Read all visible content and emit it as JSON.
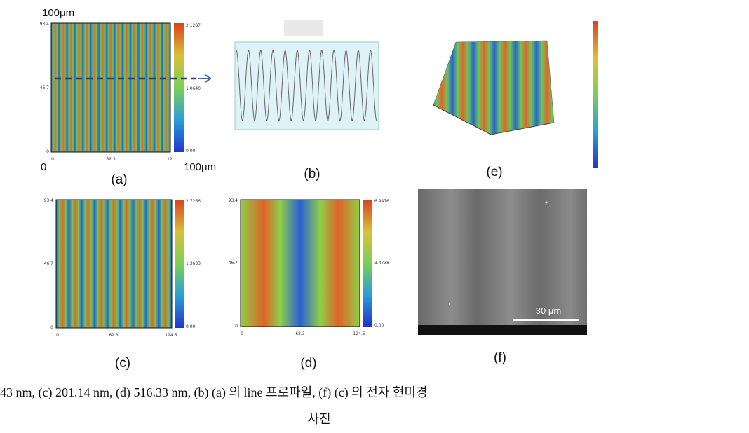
{
  "panels": {
    "a": {
      "label": "(a)",
      "scale_top": "100μm",
      "yticks": [
        "93.4",
        "46.7",
        "0"
      ],
      "xticks": [
        "0",
        "62.3",
        "12"
      ],
      "colorbar": [
        "2.1287",
        "1.0640",
        "0.00"
      ],
      "axis_start": "0",
      "axis_end": "100μm"
    },
    "b": {
      "label": "(b)"
    },
    "c": {
      "label": "(c)",
      "yticks": [
        "93.4",
        "46.7",
        "0"
      ],
      "xticks": [
        "0",
        "62.3",
        "124.5"
      ],
      "colorbar": [
        "2.7266",
        "1.3633",
        "0.00"
      ]
    },
    "d": {
      "label": "(d)",
      "yticks": [
        "93.4",
        "46.7",
        "0"
      ],
      "xticks": [
        "0",
        "62.3",
        "124.5"
      ],
      "colorbar": [
        "6.9476",
        "3.4738",
        "0.00"
      ]
    },
    "e": {
      "label": "(e)"
    },
    "f": {
      "label": "(f)",
      "scale_bar": "30 μm"
    }
  },
  "caption": [
    "43 nm, (c) 201.14 nm, (d) 516.33 nm, (b) (a) 의 line 프로파일, (f) (c) 의 전자 현미경",
    "사진"
  ]
}
